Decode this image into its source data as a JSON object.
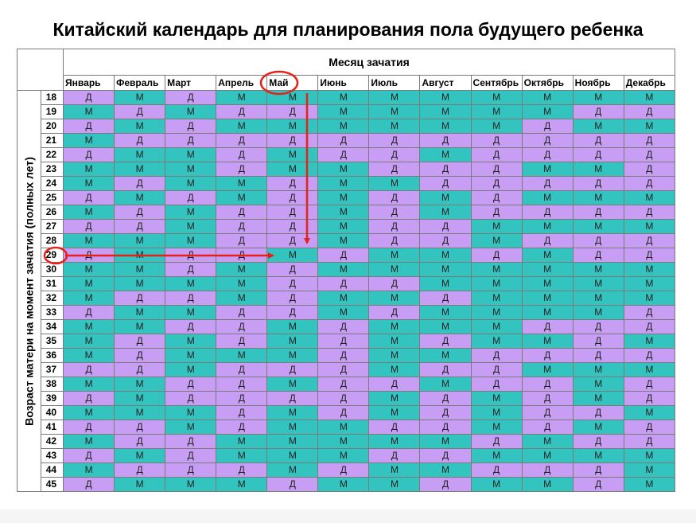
{
  "title": "Китайский календарь для планирования пола будущего ребенка",
  "month_header": "Месяц зачатия",
  "age_header": "Возраст матери на момент зачатия (полных лет)",
  "months": [
    "Январь",
    "Февраль",
    "Март",
    "Апрель",
    "Май",
    "Июнь",
    "Июль",
    "Август",
    "Сентябрь",
    "Октябрь",
    "Ноябрь",
    "Декабрь"
  ],
  "symbols": {
    "girl": "Д",
    "boy": "М"
  },
  "colors": {
    "girl": "#c89df4",
    "boy": "#33c4c0",
    "highlight": "#e8201a"
  },
  "highlight": {
    "month": "Май",
    "age": "29"
  },
  "rows": [
    {
      "age": "18",
      "cells": [
        "Д",
        "М",
        "Д",
        "М",
        "М",
        "М",
        "М",
        "М",
        "М",
        "М",
        "М",
        "М"
      ]
    },
    {
      "age": "19",
      "cells": [
        "М",
        "Д",
        "М",
        "Д",
        "Д",
        "М",
        "М",
        "М",
        "М",
        "М",
        "Д",
        "Д"
      ]
    },
    {
      "age": "20",
      "cells": [
        "Д",
        "М",
        "Д",
        "М",
        "М",
        "М",
        "М",
        "М",
        "М",
        "Д",
        "М",
        "М"
      ]
    },
    {
      "age": "21",
      "cells": [
        "М",
        "Д",
        "Д",
        "Д",
        "Д",
        "Д",
        "Д",
        "Д",
        "Д",
        "Д",
        "Д",
        "Д"
      ]
    },
    {
      "age": "22",
      "cells": [
        "Д",
        "М",
        "М",
        "Д",
        "М",
        "Д",
        "Д",
        "М",
        "Д",
        "Д",
        "Д",
        "Д"
      ]
    },
    {
      "age": "23",
      "cells": [
        "М",
        "М",
        "М",
        "Д",
        "М",
        "М",
        "Д",
        "Д",
        "Д",
        "М",
        "М",
        "Д"
      ]
    },
    {
      "age": "24",
      "cells": [
        "М",
        "Д",
        "М",
        "М",
        "Д",
        "М",
        "М",
        "Д",
        "Д",
        "Д",
        "Д",
        "Д"
      ]
    },
    {
      "age": "25",
      "cells": [
        "Д",
        "М",
        "Д",
        "М",
        "Д",
        "М",
        "Д",
        "М",
        "Д",
        "М",
        "М",
        "М"
      ]
    },
    {
      "age": "26",
      "cells": [
        "М",
        "Д",
        "М",
        "Д",
        "Д",
        "М",
        "Д",
        "М",
        "Д",
        "Д",
        "Д",
        "Д"
      ]
    },
    {
      "age": "27",
      "cells": [
        "Д",
        "Д",
        "М",
        "Д",
        "Д",
        "М",
        "Д",
        "Д",
        "М",
        "М",
        "М",
        "М"
      ]
    },
    {
      "age": "28",
      "cells": [
        "М",
        "М",
        "М",
        "Д",
        "Д",
        "М",
        "Д",
        "Д",
        "М",
        "Д",
        "Д",
        "Д"
      ]
    },
    {
      "age": "29",
      "cells": [
        "Д",
        "М",
        "Д",
        "Д",
        "М",
        "Д",
        "М",
        "М",
        "Д",
        "М",
        "Д",
        "Д"
      ]
    },
    {
      "age": "30",
      "cells": [
        "М",
        "М",
        "Д",
        "М",
        "Д",
        "М",
        "М",
        "М",
        "М",
        "М",
        "М",
        "М"
      ]
    },
    {
      "age": "31",
      "cells": [
        "М",
        "М",
        "М",
        "М",
        "Д",
        "Д",
        "Д",
        "М",
        "М",
        "М",
        "М",
        "М"
      ]
    },
    {
      "age": "32",
      "cells": [
        "М",
        "Д",
        "Д",
        "М",
        "Д",
        "М",
        "М",
        "Д",
        "М",
        "М",
        "М",
        "М"
      ]
    },
    {
      "age": "33",
      "cells": [
        "Д",
        "М",
        "М",
        "Д",
        "Д",
        "М",
        "Д",
        "М",
        "М",
        "М",
        "М",
        "Д"
      ]
    },
    {
      "age": "34",
      "cells": [
        "М",
        "М",
        "Д",
        "Д",
        "М",
        "Д",
        "М",
        "М",
        "М",
        "Д",
        "Д",
        "Д"
      ]
    },
    {
      "age": "35",
      "cells": [
        "М",
        "Д",
        "М",
        "Д",
        "М",
        "Д",
        "М",
        "Д",
        "М",
        "М",
        "Д",
        "М"
      ]
    },
    {
      "age": "36",
      "cells": [
        "М",
        "Д",
        "М",
        "М",
        "М",
        "Д",
        "М",
        "М",
        "Д",
        "Д",
        "Д",
        "Д"
      ]
    },
    {
      "age": "37",
      "cells": [
        "Д",
        "Д",
        "М",
        "Д",
        "Д",
        "Д",
        "М",
        "Д",
        "Д",
        "М",
        "М",
        "М"
      ]
    },
    {
      "age": "38",
      "cells": [
        "М",
        "М",
        "Д",
        "Д",
        "М",
        "Д",
        "Д",
        "М",
        "Д",
        "Д",
        "М",
        "Д"
      ]
    },
    {
      "age": "39",
      "cells": [
        "Д",
        "М",
        "Д",
        "Д",
        "Д",
        "Д",
        "М",
        "Д",
        "М",
        "Д",
        "М",
        "Д"
      ]
    },
    {
      "age": "40",
      "cells": [
        "М",
        "М",
        "М",
        "Д",
        "М",
        "Д",
        "М",
        "Д",
        "М",
        "Д",
        "Д",
        "М"
      ]
    },
    {
      "age": "41",
      "cells": [
        "Д",
        "Д",
        "М",
        "Д",
        "М",
        "М",
        "Д",
        "Д",
        "М",
        "Д",
        "М",
        "Д"
      ]
    },
    {
      "age": "42",
      "cells": [
        "М",
        "Д",
        "Д",
        "М",
        "М",
        "М",
        "М",
        "М",
        "Д",
        "М",
        "Д",
        "Д"
      ]
    },
    {
      "age": "43",
      "cells": [
        "Д",
        "М",
        "Д",
        "М",
        "М",
        "М",
        "Д",
        "Д",
        "М",
        "М",
        "М",
        "М"
      ]
    },
    {
      "age": "44",
      "cells": [
        "М",
        "Д",
        "Д",
        "Д",
        "М",
        "Д",
        "М",
        "М",
        "Д",
        "Д",
        "Д",
        "М"
      ]
    },
    {
      "age": "45",
      "cells": [
        "Д",
        "М",
        "М",
        "М",
        "Д",
        "М",
        "М",
        "Д",
        "М",
        "М",
        "Д",
        "М"
      ]
    }
  ]
}
